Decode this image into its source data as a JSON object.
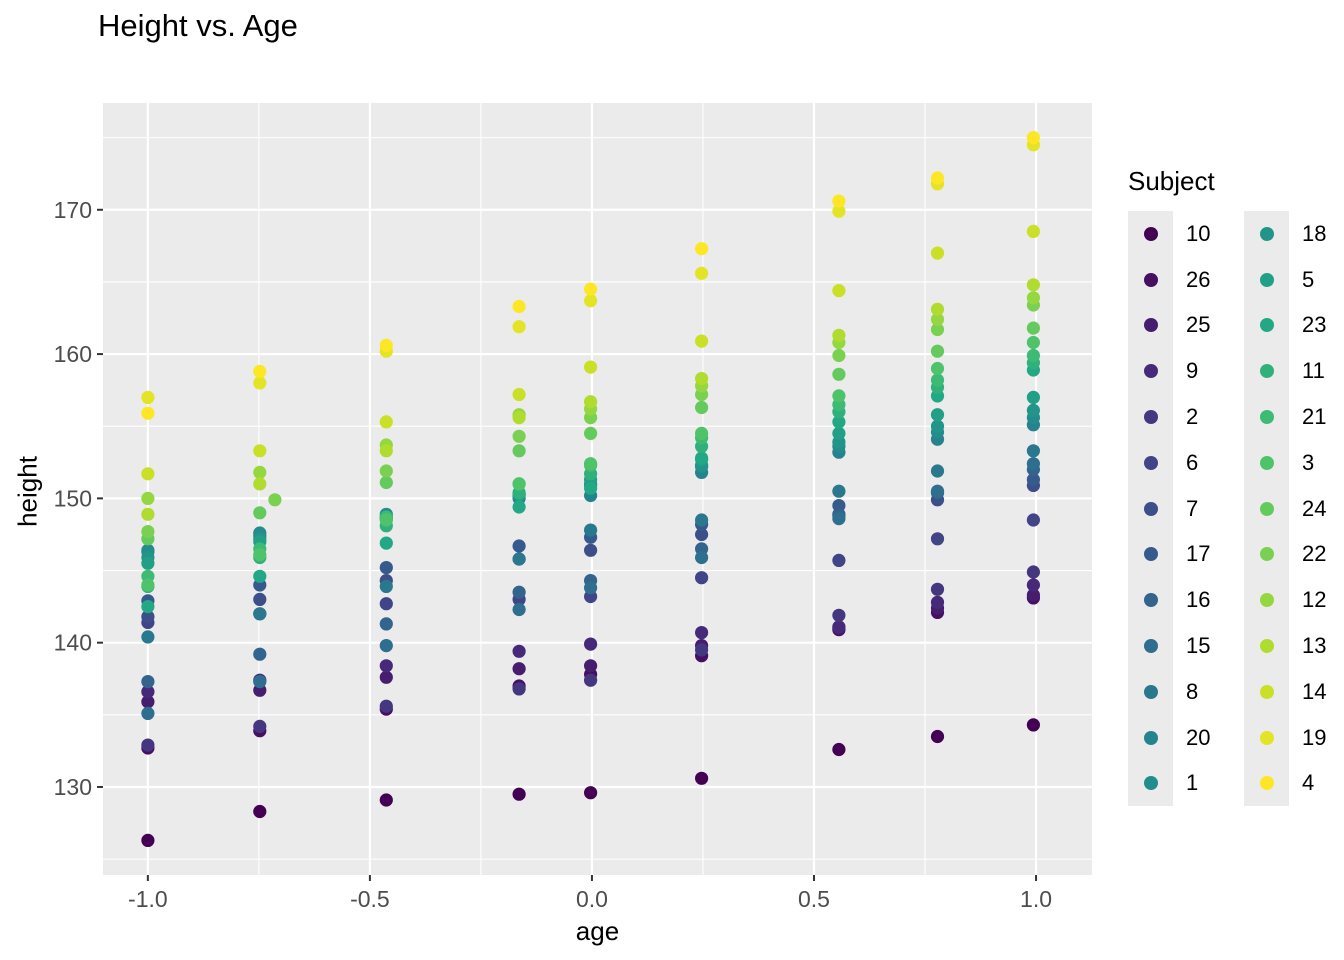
{
  "title": "Height vs. Age",
  "axes": {
    "x": {
      "label": "age",
      "tick_labels": [
        "-1.0",
        "-0.5",
        "0.0",
        "0.5",
        "1.0"
      ],
      "tick_values": [
        -1.0,
        -0.5,
        0.0,
        0.5,
        1.0
      ],
      "minor_ticks": [
        -0.75,
        -0.25,
        0.25,
        0.75
      ]
    },
    "y": {
      "label": "height",
      "tick_labels": [
        "130",
        "140",
        "150",
        "160",
        "170"
      ],
      "tick_values": [
        130,
        140,
        150,
        160,
        170
      ],
      "minor_ticks": [
        125,
        135,
        145,
        155,
        165,
        175
      ]
    }
  },
  "legend": {
    "title": "Subject"
  },
  "style": {
    "panel_bg": "#EBEBEB",
    "grid_color": "#FFFFFF",
    "tick_label_color": "#4D4D4D",
    "tick_mark_color": "#333333",
    "text_color": "#000000",
    "legend_key_bg": "#EBEBEB",
    "point_radius": 6.6
  },
  "chart_data": {
    "type": "scatter",
    "title": "Height vs. Age",
    "xlabel": "age",
    "ylabel": "height",
    "x": [
      -1.0,
      -0.748,
      -0.463,
      -0.164,
      -0.003,
      0.247,
      0.556,
      0.778,
      0.994
    ],
    "xlim": [
      -1.101,
      1.126
    ],
    "ylim": [
      123.9,
      177.4
    ],
    "grid": true,
    "legend_position": "right",
    "legend_title": "Subject",
    "series": [
      {
        "name": "10",
        "color": "#440154",
        "values": [
          126.3,
          128.3,
          129.1,
          129.5,
          129.6,
          130.6,
          132.6,
          133.5,
          134.3
        ]
      },
      {
        "name": "26",
        "color": "#460F61",
        "values": [
          132.7,
          133.9,
          135.4,
          137.0,
          137.8,
          139.1,
          140.9,
          142.1,
          143.1
        ]
      },
      {
        "name": "25",
        "color": "#471D6E",
        "values": [
          135.9,
          136.7,
          137.6,
          138.2,
          138.4,
          139.8,
          141.0,
          142.4,
          143.3
        ]
      },
      {
        "name": "9",
        "color": "#462A79",
        "values": [
          136.6,
          137.4,
          138.4,
          139.4,
          139.9,
          140.7,
          141.1,
          142.8,
          144.0
        ]
      },
      {
        "name": "2",
        "color": "#443780",
        "values": [
          132.9,
          134.2,
          135.6,
          136.8,
          137.4,
          139.5,
          141.9,
          143.7,
          144.9
        ]
      },
      {
        "name": "6",
        "color": "#414487",
        "values": [
          141.4,
          142.0,
          142.7,
          143.0,
          143.2,
          144.5,
          145.7,
          147.2,
          148.5
        ]
      },
      {
        "name": "7",
        "color": "#3C4F89",
        "values": [
          141.8,
          143.0,
          144.3,
          145.8,
          146.4,
          147.5,
          148.9,
          149.9,
          150.9
        ]
      },
      {
        "name": "17",
        "color": "#375A8C",
        "values": [
          142.9,
          144.0,
          145.2,
          146.7,
          147.3,
          148.2,
          149.5,
          150.4,
          151.3
        ]
      },
      {
        "name": "16",
        "color": "#33648D",
        "values": [
          137.3,
          139.2,
          141.3,
          143.5,
          144.3,
          146.5,
          148.8,
          150.4,
          152.0
        ]
      },
      {
        "name": "15",
        "color": "#2E6E8E",
        "values": [
          135.1,
          137.3,
          139.8,
          142.3,
          143.8,
          145.9,
          148.6,
          150.5,
          152.4
        ]
      },
      {
        "name": "8",
        "color": "#2A788E",
        "values": [
          140.4,
          142.0,
          143.9,
          145.8,
          147.8,
          148.5,
          150.5,
          151.9,
          153.3
        ]
      },
      {
        "name": "20",
        "color": "#26828D",
        "values": [
          146.3,
          147.4,
          148.7,
          150.0,
          150.2,
          151.8,
          153.2,
          154.1,
          155.1
        ]
      },
      {
        "name": "1",
        "color": "#238C8C",
        "values": [
          146.4,
          147.6,
          148.9,
          150.3,
          151.0,
          152.2,
          153.6,
          154.6,
          155.6
        ]
      },
      {
        "name": "18",
        "color": "#21958A",
        "values": [
          145.9,
          147.2,
          148.6,
          150.2,
          150.9,
          152.3,
          153.9,
          155.0,
          156.1
        ]
      },
      {
        "name": "5",
        "color": "#229F87",
        "values": [
          145.5,
          147.0,
          148.6,
          150.3,
          151.3,
          152.7,
          154.5,
          155.8,
          157.0
        ]
      },
      {
        "name": "23",
        "color": "#22A884",
        "values": [
          142.5,
          144.6,
          146.9,
          149.4,
          150.7,
          152.8,
          155.3,
          157.1,
          158.9
        ]
      },
      {
        "name": "11",
        "color": "#30B17C",
        "values": [
          143.9,
          145.9,
          148.1,
          150.4,
          151.7,
          153.6,
          156.0,
          157.7,
          159.4
        ]
      },
      {
        "name": "21",
        "color": "#3DBA74",
        "values": [
          144.6,
          146.5,
          148.7,
          151.0,
          152.3,
          154.2,
          156.5,
          158.2,
          159.9
        ]
      },
      {
        "name": "3",
        "color": "#4FC36A",
        "values": [
          144.0,
          146.1,
          148.5,
          151.0,
          152.4,
          154.5,
          157.1,
          159.0,
          160.8
        ]
      },
      {
        "name": "24",
        "color": "#64CA5D",
        "values": [
          147.2,
          149.0,
          151.1,
          153.3,
          154.5,
          156.3,
          158.6,
          160.2,
          161.8
        ]
      },
      {
        "name": "22",
        "color": "#7AD151",
        "x": [
          -1.0,
          -0.714,
          -0.463,
          -0.164,
          -0.003,
          0.247,
          0.556,
          0.778,
          0.994
        ],
        "values": [
          147.7,
          149.9,
          151.9,
          154.3,
          155.6,
          157.2,
          159.9,
          161.7,
          163.4
        ]
      },
      {
        "name": "12",
        "color": "#95D740",
        "values": [
          150.0,
          151.8,
          153.7,
          155.8,
          156.2,
          157.8,
          160.8,
          162.4,
          163.9
        ]
      },
      {
        "name": "13",
        "color": "#B0DC2F",
        "values": [
          148.9,
          151.0,
          153.3,
          155.6,
          156.7,
          158.3,
          161.3,
          163.1,
          164.8
        ]
      },
      {
        "name": "14",
        "color": "#CAE026",
        "values": [
          151.7,
          153.3,
          155.3,
          157.2,
          159.1,
          160.9,
          164.4,
          167.0,
          168.5
        ]
      },
      {
        "name": "19",
        "color": "#E3E425",
        "values": [
          157.0,
          158.0,
          160.2,
          161.9,
          163.7,
          165.6,
          169.9,
          171.8,
          174.5
        ]
      },
      {
        "name": "4",
        "color": "#FDE725",
        "values": [
          155.9,
          158.8,
          160.6,
          163.3,
          164.5,
          167.3,
          170.6,
          172.2,
          175.0
        ]
      }
    ]
  }
}
